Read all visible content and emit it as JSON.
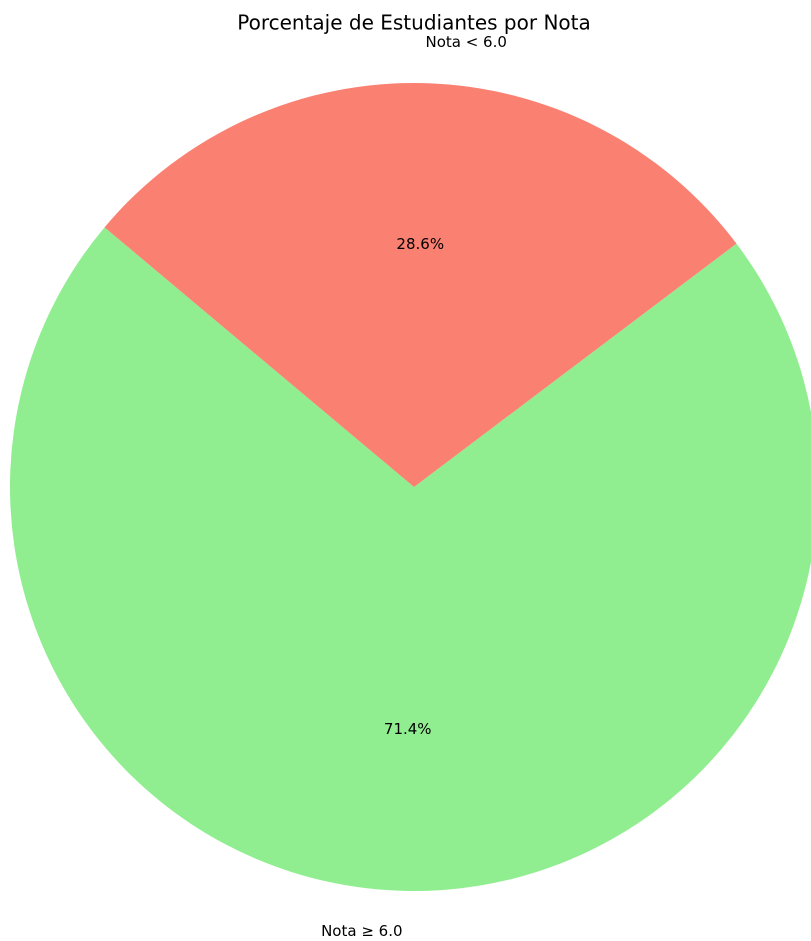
{
  "chart_data": {
    "type": "pie",
    "title": "Porcentaje de Estudiantes por Nota",
    "categories": [
      "Nota ≥ 6.0",
      "Nota < 6.0"
    ],
    "values": [
      71.4,
      28.6
    ],
    "value_labels": [
      "71.4%",
      "28.6%"
    ],
    "colors": [
      "#90ee90",
      "#fa8072"
    ]
  }
}
